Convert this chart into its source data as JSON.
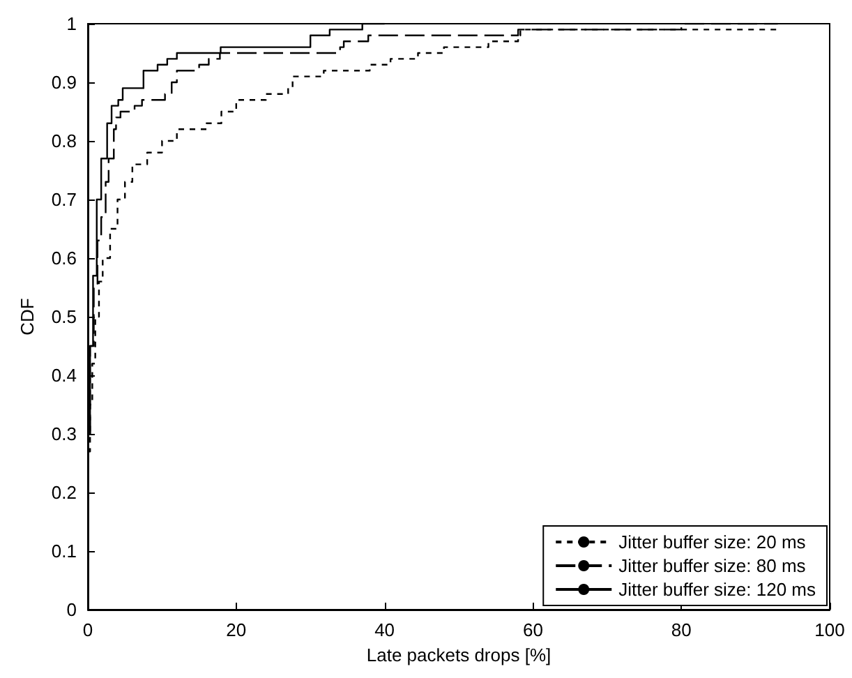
{
  "chart_data": {
    "type": "step",
    "xlabel": "Late packets drops [%]",
    "ylabel": "CDF",
    "xlim": [
      0,
      100
    ],
    "xticks": [
      0,
      20,
      40,
      60,
      80,
      100
    ],
    "ylim": [
      0,
      1
    ],
    "yticks": [
      0,
      0.1,
      0.2,
      0.3,
      0.4,
      0.5,
      0.6,
      0.7,
      0.8,
      0.9,
      1
    ],
    "grid": false,
    "legend": "bottom right",
    "marker": "none",
    "series": [
      {
        "name": "Jitter buffer size: 20 ms",
        "color": "#000000",
        "line_style": "dashed",
        "x": [
          0,
          0.3,
          0.6,
          1,
          1.5,
          2,
          3,
          4,
          5,
          6,
          8,
          10,
          12,
          16,
          18,
          20,
          24,
          27,
          27.6,
          31.8,
          38,
          40.8,
          44.5,
          48,
          54,
          58,
          58.3,
          76,
          93
        ],
        "values": [
          0.27,
          0.35,
          0.42,
          0.5,
          0.56,
          0.6,
          0.65,
          0.7,
          0.73,
          0.76,
          0.78,
          0.8,
          0.82,
          0.83,
          0.85,
          0.87,
          0.88,
          0.89,
          0.91,
          0.92,
          0.93,
          0.94,
          0.95,
          0.96,
          0.97,
          0.98,
          0.99,
          0.99,
          0.99
        ]
      },
      {
        "name": "Jitter buffer size: 80 ms",
        "color": "#000000",
        "line_style": "dashed",
        "x": [
          0,
          0.3,
          0.8,
          1.3,
          1.8,
          2.4,
          2.8,
          3.5,
          3.8,
          4.4,
          6.3,
          7.3,
          10.4,
          11.3,
          12,
          15,
          16.3,
          17.8,
          34,
          34.5,
          37.8,
          39.5,
          58,
          80,
          93
        ],
        "values": [
          0.3,
          0.45,
          0.55,
          0.63,
          0.67,
          0.73,
          0.77,
          0.82,
          0.84,
          0.85,
          0.86,
          0.87,
          0.88,
          0.9,
          0.92,
          0.93,
          0.94,
          0.95,
          0.96,
          0.97,
          0.98,
          0.98,
          0.99,
          1,
          1
        ]
      },
      {
        "name": "Jitter buffer size: 120 ms",
        "color": "#000000",
        "line_style": "solid",
        "x": [
          0,
          0.3,
          0.7,
          1.2,
          1.8,
          2.6,
          3.2,
          4.1,
          4.7,
          6,
          7.5,
          9.4,
          10.7,
          12,
          17.9,
          30,
          32.6,
          37,
          40
        ],
        "values": [
          0.3,
          0.45,
          0.57,
          0.7,
          0.77,
          0.83,
          0.86,
          0.87,
          0.89,
          0.89,
          0.92,
          0.93,
          0.94,
          0.95,
          0.96,
          0.98,
          0.99,
          1,
          1
        ]
      }
    ]
  }
}
